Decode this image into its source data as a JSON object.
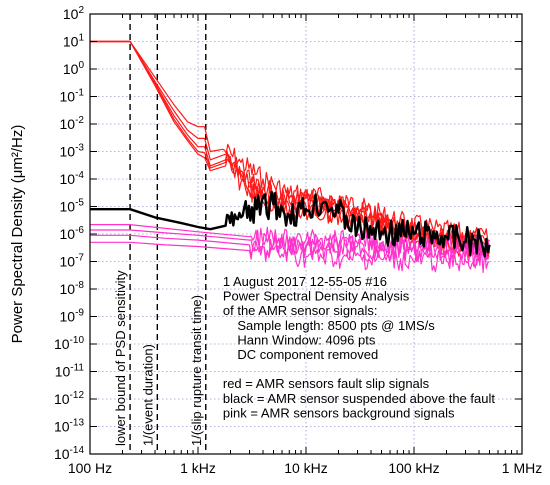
{
  "chart_data": {
    "type": "line",
    "ylabel": "Power Spectral Density (μm²/Hz)",
    "xscale": "log",
    "yscale": "log",
    "xlim": [
      100,
      1000000
    ],
    "ylim": [
      1e-14,
      100
    ],
    "grid": true,
    "x_ticks": [
      {
        "value": 100,
        "label": "100 Hz"
      },
      {
        "value": 1000,
        "label": "1 kHz"
      },
      {
        "value": 10000,
        "label": "10 kHz"
      },
      {
        "value": 100000,
        "label": "100 kHz"
      },
      {
        "value": 1000000,
        "label": "1 MHz"
      }
    ],
    "y_ticks": [
      {
        "value": 100,
        "mant": "10",
        "exp": "2"
      },
      {
        "value": 10,
        "mant": "10",
        "exp": "1"
      },
      {
        "value": 1,
        "mant": "10",
        "exp": "0"
      },
      {
        "value": 0.1,
        "mant": "10",
        "exp": "-1"
      },
      {
        "value": 0.01,
        "mant": "10",
        "exp": "-2"
      },
      {
        "value": 0.001,
        "mant": "10",
        "exp": "-3"
      },
      {
        "value": 0.0001,
        "mant": "10",
        "exp": "-4"
      },
      {
        "value": 1e-05,
        "mant": "10",
        "exp": "-5"
      },
      {
        "value": 1e-06,
        "mant": "10",
        "exp": "-6"
      },
      {
        "value": 1e-07,
        "mant": "10",
        "exp": "-7"
      },
      {
        "value": 1e-08,
        "mant": "10",
        "exp": "-8"
      },
      {
        "value": 1e-09,
        "mant": "10",
        "exp": "-9"
      },
      {
        "value": 1e-10,
        "mant": "10",
        "exp": "-10"
      },
      {
        "value": 1e-11,
        "mant": "10",
        "exp": "-11"
      },
      {
        "value": 1e-12,
        "mant": "10",
        "exp": "-12"
      },
      {
        "value": 1e-13,
        "mant": "10",
        "exp": "-13"
      },
      {
        "value": 1e-14,
        "mant": "10",
        "exp": "-14"
      }
    ],
    "vlines": [
      {
        "x": 235,
        "label": "lower bound of PSD sensitivity"
      },
      {
        "x": 420,
        "label": "1/(event duration)"
      },
      {
        "x": 1180,
        "label": "1/(slip rupture transit time)"
      }
    ],
    "annotations": [
      "1 August 2017    12-55-05 #16",
      "Power Spectral Density Analysis",
      "of the AMR sensor signals:",
      "  Sample length: 8500 pts @ 1MS/s",
      "  Hann Window: 4096 pts",
      "  DC component removed",
      "",
      "red = AMR sensors fault slip signals",
      "black = AMR sensor suspended above the fault",
      "pink = AMR sensors background signals"
    ],
    "colors": {
      "red": "#ff1a1a",
      "black": "#000000",
      "pink": "#ff33cc",
      "grid": "#9a9acc"
    },
    "series": [
      {
        "color": "red",
        "points": [
          [
            100,
            10
          ],
          [
            235,
            10
          ],
          [
            400,
            0.5
          ],
          [
            600,
            0.05
          ],
          [
            800,
            0.012
          ],
          [
            1000,
            0.008
          ],
          [
            1150,
            0.008
          ],
          [
            1300,
            0.001
          ],
          [
            1700,
            0.0012
          ],
          [
            2500,
            0.0004
          ],
          [
            4000,
            0.0001
          ],
          [
            7000,
            3e-05
          ],
          [
            15000,
            2e-05
          ],
          [
            30000,
            1e-05
          ],
          [
            70000,
            3e-06
          ],
          [
            150000,
            1.5e-06
          ],
          [
            300000,
            1e-06
          ],
          [
            500000,
            6e-07
          ]
        ]
      },
      {
        "color": "red",
        "points": [
          [
            100,
            10
          ],
          [
            235,
            10
          ],
          [
            400,
            0.35
          ],
          [
            600,
            0.03
          ],
          [
            800,
            0.006
          ],
          [
            1000,
            0.003
          ],
          [
            1150,
            0.003
          ],
          [
            1300,
            0.0005
          ],
          [
            1800,
            0.0008
          ],
          [
            2500,
            0.0002
          ],
          [
            4000,
            5e-05
          ],
          [
            7000,
            2e-05
          ],
          [
            15000,
            1.5e-05
          ],
          [
            30000,
            8e-06
          ],
          [
            70000,
            2e-06
          ],
          [
            150000,
            1e-06
          ],
          [
            300000,
            7e-07
          ],
          [
            500000,
            4e-07
          ]
        ]
      },
      {
        "color": "red",
        "points": [
          [
            100,
            10
          ],
          [
            235,
            10
          ],
          [
            400,
            0.3
          ],
          [
            600,
            0.02
          ],
          [
            800,
            0.004
          ],
          [
            1000,
            0.0015
          ],
          [
            1150,
            0.0015
          ],
          [
            1300,
            0.0003
          ],
          [
            1800,
            0.0005
          ],
          [
            2500,
            0.00015
          ],
          [
            4000,
            3e-05
          ],
          [
            7000,
            1.5e-05
          ],
          [
            15000,
            1e-05
          ],
          [
            30000,
            5e-06
          ],
          [
            70000,
            1.5e-06
          ],
          [
            150000,
            8e-07
          ],
          [
            300000,
            5e-07
          ],
          [
            500000,
            3e-07
          ]
        ]
      },
      {
        "color": "red",
        "points": [
          [
            100,
            10
          ],
          [
            235,
            10
          ],
          [
            400,
            0.28
          ],
          [
            600,
            0.015
          ],
          [
            800,
            0.003
          ],
          [
            1000,
            0.001
          ],
          [
            1150,
            0.0009
          ],
          [
            1300,
            0.00025
          ],
          [
            1800,
            0.0004
          ],
          [
            2500,
            0.0001
          ],
          [
            4000,
            2e-05
          ],
          [
            7000,
            1e-05
          ],
          [
            15000,
            8e-06
          ],
          [
            30000,
            4e-06
          ],
          [
            70000,
            1.2e-06
          ],
          [
            150000,
            6e-07
          ],
          [
            300000,
            4e-07
          ],
          [
            500000,
            2.5e-07
          ]
        ]
      },
      {
        "color": "red",
        "points": [
          [
            100,
            10
          ],
          [
            235,
            10
          ],
          [
            400,
            0.25
          ],
          [
            600,
            0.012
          ],
          [
            800,
            0.0025
          ],
          [
            1000,
            0.0008
          ],
          [
            1150,
            0.0006
          ],
          [
            1300,
            0.0002
          ],
          [
            1800,
            0.0003
          ],
          [
            2500,
            8e-05
          ],
          [
            4000,
            1.5e-05
          ],
          [
            7000,
            8e-06
          ],
          [
            15000,
            5e-06
          ],
          [
            30000,
            3e-06
          ],
          [
            70000,
            1e-06
          ],
          [
            150000,
            5e-07
          ],
          [
            300000,
            3e-07
          ],
          [
            500000,
            2e-07
          ]
        ]
      },
      {
        "color": "pink",
        "points": [
          [
            100,
            2.2e-06
          ],
          [
            235,
            2.2e-06
          ],
          [
            500,
            1.6e-06
          ],
          [
            1000,
            1.2e-06
          ],
          [
            3000,
            8e-07
          ],
          [
            10000,
            6e-07
          ],
          [
            50000,
            5e-07
          ],
          [
            200000,
            4e-07
          ],
          [
            500000,
            3e-07
          ]
        ]
      },
      {
        "color": "pink",
        "points": [
          [
            100,
            1.4e-06
          ],
          [
            235,
            1.4e-06
          ],
          [
            500,
            1.1e-06
          ],
          [
            1000,
            9e-07
          ],
          [
            3000,
            6e-07
          ],
          [
            10000,
            4e-07
          ],
          [
            50000,
            3.5e-07
          ],
          [
            200000,
            3e-07
          ],
          [
            500000,
            2.5e-07
          ]
        ]
      },
      {
        "color": "pink",
        "points": [
          [
            100,
            9e-07
          ],
          [
            235,
            9e-07
          ],
          [
            500,
            7e-07
          ],
          [
            1000,
            6e-07
          ],
          [
            3000,
            4e-07
          ],
          [
            10000,
            3e-07
          ],
          [
            50000,
            2.5e-07
          ],
          [
            200000,
            2e-07
          ],
          [
            500000,
            1.5e-07
          ]
        ]
      },
      {
        "color": "pink",
        "points": [
          [
            100,
            5e-07
          ],
          [
            235,
            5e-07
          ],
          [
            500,
            4e-07
          ],
          [
            1000,
            3.5e-07
          ],
          [
            3000,
            2.5e-07
          ],
          [
            10000,
            1.5e-07
          ],
          [
            50000,
            1.2e-07
          ],
          [
            200000,
            1e-07
          ],
          [
            500000,
            1e-07
          ]
        ]
      },
      {
        "color": "black",
        "points": [
          [
            100,
            8e-06
          ],
          [
            235,
            8e-06
          ],
          [
            400,
            4e-06
          ],
          [
            700,
            2.5e-06
          ],
          [
            1000,
            1.8e-06
          ],
          [
            1300,
            1.5e-06
          ],
          [
            1800,
            2e-06
          ],
          [
            2500,
            4e-06
          ],
          [
            3500,
            8e-06
          ],
          [
            5000,
            1.2e-05
          ],
          [
            7000,
            5e-06
          ],
          [
            10000,
            8e-06
          ],
          [
            15000,
            1.5e-05
          ],
          [
            20000,
            6e-06
          ],
          [
            30000,
            1.5e-06
          ],
          [
            50000,
            1.2e-06
          ],
          [
            100000,
            1e-06
          ],
          [
            200000,
            8e-07
          ],
          [
            500000,
            4e-07
          ]
        ]
      }
    ]
  }
}
